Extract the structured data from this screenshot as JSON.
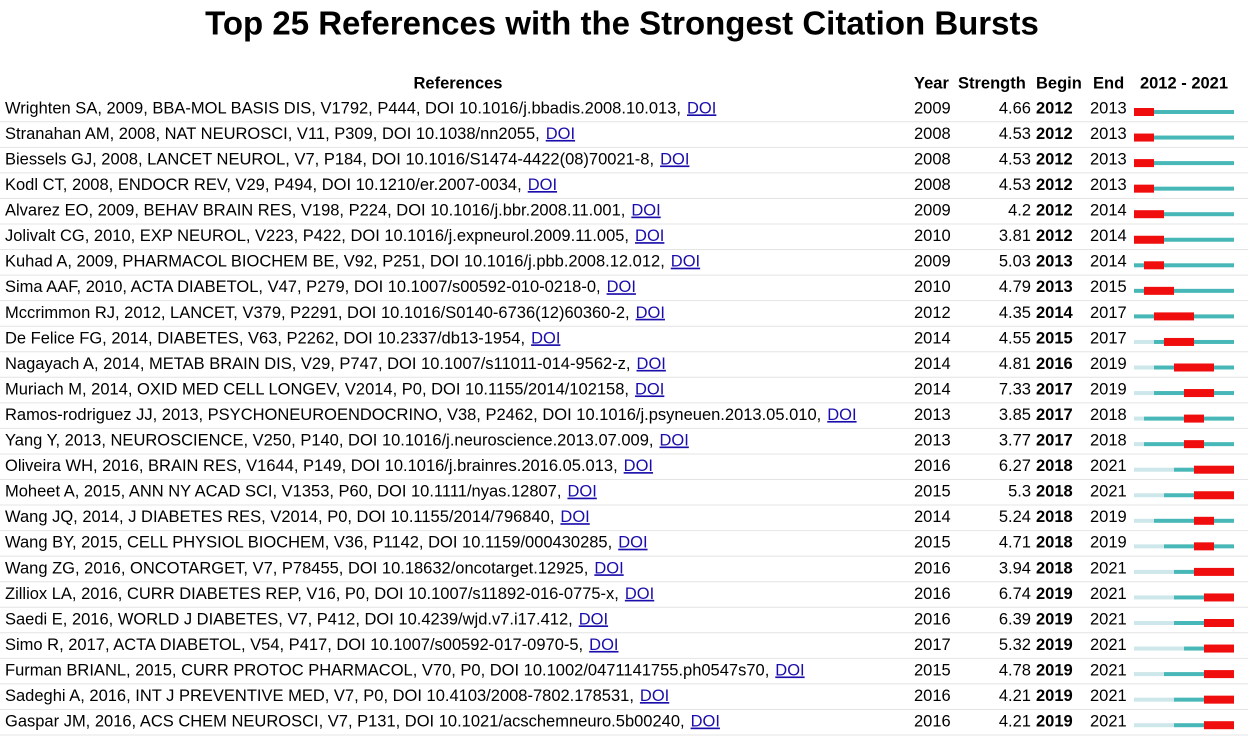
{
  "title": "Top 25 References with the Strongest Citation Bursts",
  "table": {
    "columns": [
      "References",
      "Year",
      "Strength",
      "Begin",
      "End"
    ],
    "timeline": {
      "label": "2012 - 2021",
      "start": 2012,
      "end": 2021
    },
    "rows": [
      {
        "ref": "Wrighten SA, 2009, BBA-MOL BASIS DIS, V1792, P444, DOI 10.1016/j.bbadis.2008.10.013,",
        "link": "DOI",
        "year": 2009,
        "strength": 4.66,
        "begin": 2012,
        "end": 2013
      },
      {
        "ref": "Stranahan AM, 2008, NAT NEUROSCI, V11, P309, DOI 10.1038/nn2055,",
        "link": "DOI",
        "year": 2008,
        "strength": 4.53,
        "begin": 2012,
        "end": 2013
      },
      {
        "ref": "Biessels GJ, 2008, LANCET NEUROL, V7, P184, DOI 10.1016/S1474-4422(08)70021-8,",
        "link": "DOI",
        "year": 2008,
        "strength": 4.53,
        "begin": 2012,
        "end": 2013
      },
      {
        "ref": "Kodl CT, 2008, ENDOCR REV, V29, P494, DOI 10.1210/er.2007-0034,",
        "link": "DOI",
        "year": 2008,
        "strength": 4.53,
        "begin": 2012,
        "end": 2013
      },
      {
        "ref": "Alvarez EO, 2009, BEHAV BRAIN RES, V198, P224, DOI 10.1016/j.bbr.2008.11.001,",
        "link": "DOI",
        "year": 2009,
        "strength": 4.2,
        "begin": 2012,
        "end": 2014
      },
      {
        "ref": "Jolivalt CG, 2010, EXP NEUROL, V223, P422, DOI 10.1016/j.expneurol.2009.11.005,",
        "link": "DOI",
        "year": 2010,
        "strength": 3.81,
        "begin": 2012,
        "end": 2014
      },
      {
        "ref": "Kuhad A, 2009, PHARMACOL BIOCHEM BE, V92, P251, DOI 10.1016/j.pbb.2008.12.012,",
        "link": "DOI",
        "year": 2009,
        "strength": 5.03,
        "begin": 2013,
        "end": 2014
      },
      {
        "ref": "Sima AAF, 2010, ACTA DIABETOL, V47, P279, DOI 10.1007/s00592-010-0218-0,",
        "link": "DOI",
        "year": 2010,
        "strength": 4.79,
        "begin": 2013,
        "end": 2015
      },
      {
        "ref": "Mccrimmon RJ, 2012, LANCET, V379, P2291, DOI 10.1016/S0140-6736(12)60360-2,",
        "link": "DOI",
        "year": 2012,
        "strength": 4.35,
        "begin": 2014,
        "end": 2017
      },
      {
        "ref": "De Felice FG, 2014, DIABETES, V63, P2262, DOI 10.2337/db13-1954,",
        "link": "DOI",
        "year": 2014,
        "strength": 4.55,
        "begin": 2015,
        "end": 2017
      },
      {
        "ref": "Nagayach A, 2014, METAB BRAIN DIS, V29, P747, DOI 10.1007/s11011-014-9562-z,",
        "link": "DOI",
        "year": 2014,
        "strength": 4.81,
        "begin": 2016,
        "end": 2019
      },
      {
        "ref": "Muriach M, 2014, OXID MED CELL LONGEV, V2014, P0, DOI 10.1155/2014/102158,",
        "link": "DOI",
        "year": 2014,
        "strength": 7.33,
        "begin": 2017,
        "end": 2019
      },
      {
        "ref": "Ramos-rodriguez JJ, 2013, PSYCHONEUROENDOCRINO, V38, P2462, DOI 10.1016/j.psyneuen.2013.05.010,",
        "link": "DOI",
        "year": 2013,
        "strength": 3.85,
        "begin": 2017,
        "end": 2018
      },
      {
        "ref": "Yang Y, 2013, NEUROSCIENCE, V250, P140, DOI 10.1016/j.neuroscience.2013.07.009,",
        "link": "DOI",
        "year": 2013,
        "strength": 3.77,
        "begin": 2017,
        "end": 2018
      },
      {
        "ref": "Oliveira WH, 2016, BRAIN RES, V1644, P149, DOI 10.1016/j.brainres.2016.05.013,",
        "link": "DOI",
        "year": 2016,
        "strength": 6.27,
        "begin": 2018,
        "end": 2021
      },
      {
        "ref": "Moheet A, 2015, ANN NY ACAD SCI, V1353, P60, DOI 10.1111/nyas.12807,",
        "link": "DOI",
        "year": 2015,
        "strength": 5.3,
        "begin": 2018,
        "end": 2021
      },
      {
        "ref": "Wang JQ, 2014, J DIABETES RES, V2014, P0, DOI 10.1155/2014/796840,",
        "link": "DOI",
        "year": 2014,
        "strength": 5.24,
        "begin": 2018,
        "end": 2019
      },
      {
        "ref": "Wang BY, 2015, CELL PHYSIOL BIOCHEM, V36, P1142, DOI 10.1159/000430285,",
        "link": "DOI",
        "year": 2015,
        "strength": 4.71,
        "begin": 2018,
        "end": 2019
      },
      {
        "ref": "Wang ZG, 2016, ONCOTARGET, V7, P78455, DOI 10.18632/oncotarget.12925,",
        "link": "DOI",
        "year": 2016,
        "strength": 3.94,
        "begin": 2018,
        "end": 2021
      },
      {
        "ref": "Zilliox LA, 2016, CURR DIABETES REP, V16, P0, DOI 10.1007/s11892-016-0775-x,",
        "link": "DOI",
        "year": 2016,
        "strength": 6.74,
        "begin": 2019,
        "end": 2021
      },
      {
        "ref": "Saedi E, 2016, WORLD J DIABETES, V7, P412, DOI 10.4239/wjd.v7.i17.412,",
        "link": "DOI",
        "year": 2016,
        "strength": 6.39,
        "begin": 2019,
        "end": 2021
      },
      {
        "ref": "Simo R, 2017, ACTA DIABETOL, V54, P417, DOI 10.1007/s00592-017-0970-5,",
        "link": "DOI",
        "year": 2017,
        "strength": 5.32,
        "begin": 2019,
        "end": 2021
      },
      {
        "ref": "Furman BRIANL, 2015, CURR PROTOC PHARMACOL, V70, P0, DOI 10.1002/0471141755.ph0547s70,",
        "link": "DOI",
        "year": 2015,
        "strength": 4.78,
        "begin": 2019,
        "end": 2021
      },
      {
        "ref": "Sadeghi A, 2016, INT J PREVENTIVE MED, V7, P0, DOI 10.4103/2008-7802.178531,",
        "link": "DOI",
        "year": 2016,
        "strength": 4.21,
        "begin": 2019,
        "end": 2021
      },
      {
        "ref": "Gaspar JM, 2016, ACS CHEM NEUROSCI, V7, P131, DOI 10.1021/acschemneuro.5b00240,",
        "link": "DOI",
        "year": 2016,
        "strength": 4.21,
        "begin": 2019,
        "end": 2021
      }
    ]
  }
}
